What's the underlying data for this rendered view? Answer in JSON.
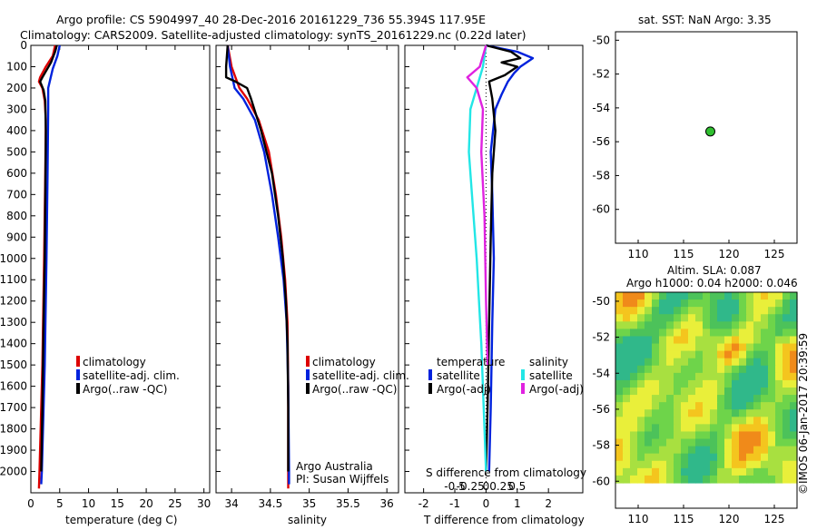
{
  "header": {
    "title_line1": "Argo profile: CS 5904997_40 28-Dec-2016 20161229_736 55.394S 117.95E",
    "title_line2": "Climatology: CARS2009. Satellite-adjusted climatology: synTS_20161229.nc (0.22d later)"
  },
  "colors": {
    "climatology": "#dd0000",
    "satellite": "#0022dd",
    "argo": "#000000",
    "sat_salinity": "#22e6e6",
    "argo_salinity": "#e022e0",
    "marker": "#2fbf2f"
  },
  "chart_data": [
    {
      "type": "line",
      "name": "temperature-profile",
      "xlabel": "temperature (deg C)",
      "ylabel": "",
      "xlim": [
        0,
        31
      ],
      "ylim": [
        2100,
        0
      ],
      "x_ticks": [
        "0",
        "5",
        "10",
        "15",
        "20",
        "25",
        "30"
      ],
      "y_ticks": [
        "0",
        "100",
        "200",
        "300",
        "400",
        "500",
        "600",
        "700",
        "800",
        "900",
        "1000",
        "1100",
        "1200",
        "1300",
        "1400",
        "1500",
        "1600",
        "1700",
        "1800",
        "1900",
        "2000"
      ],
      "legend": [
        "climatology",
        "satellite-adj. clim.",
        "Argo(..raw -QC)"
      ],
      "series": [
        {
          "name": "climatology",
          "color": "#dd0000",
          "points": [
            [
              4.2,
              0
            ],
            [
              3.8,
              50
            ],
            [
              2.6,
              100
            ],
            [
              1.6,
              150
            ],
            [
              1.4,
              170
            ],
            [
              2.0,
              200
            ],
            [
              2.4,
              260
            ],
            [
              2.6,
              350
            ],
            [
              2.5,
              600
            ],
            [
              2.3,
              1000
            ],
            [
              2.0,
              1500
            ],
            [
              1.5,
              2000
            ],
            [
              1.4,
              2080
            ]
          ]
        },
        {
          "name": "satellite-adj. clim.",
          "color": "#0022dd",
          "points": [
            [
              5.0,
              0
            ],
            [
              4.6,
              50
            ],
            [
              3.8,
              110
            ],
            [
              3.0,
              200
            ],
            [
              3.0,
              300
            ],
            [
              2.9,
              600
            ],
            [
              2.7,
              1000
            ],
            [
              2.4,
              1500
            ],
            [
              1.9,
              2000
            ],
            [
              1.8,
              2060
            ]
          ]
        },
        {
          "name": "Argo(..raw -QC)",
          "color": "#000000",
          "points": [
            [
              4.5,
              0
            ],
            [
              4.2,
              30
            ],
            [
              3.5,
              80
            ],
            [
              2.0,
              150
            ],
            [
              1.6,
              170
            ],
            [
              2.2,
              210
            ],
            [
              2.5,
              260
            ],
            [
              2.6,
              400
            ],
            [
              2.5,
              700
            ],
            [
              2.4,
              1000
            ],
            [
              2.2,
              1300
            ],
            [
              2.0,
              1700
            ],
            [
              1.8,
              2000
            ]
          ]
        }
      ]
    },
    {
      "type": "line",
      "name": "salinity-profile",
      "xlabel": "salinity",
      "xlim": [
        33.8,
        36.15
      ],
      "ylim": [
        2100,
        0
      ],
      "x_ticks": [
        "34",
        "34.5",
        "35",
        "35.5",
        "36"
      ],
      "legend": [
        "climatology",
        "satellite-adj. clim.",
        "Argo(..raw -QC)"
      ],
      "annotation": [
        "Argo Australia",
        "PI: Susan Wijffels"
      ],
      "series": [
        {
          "name": "climatology",
          "color": "#dd0000",
          "points": [
            [
              33.95,
              0
            ],
            [
              34.0,
              100
            ],
            [
              34.1,
              200
            ],
            [
              34.2,
              250
            ],
            [
              34.35,
              350
            ],
            [
              34.48,
              500
            ],
            [
              34.57,
              700
            ],
            [
              34.64,
              900
            ],
            [
              34.69,
              1100
            ],
            [
              34.72,
              1300
            ],
            [
              34.73,
              1600
            ],
            [
              34.73,
              2000
            ],
            [
              34.73,
              2080
            ]
          ]
        },
        {
          "name": "satellite-adj. clim.",
          "color": "#0022dd",
          "points": [
            [
              33.95,
              0
            ],
            [
              33.98,
              100
            ],
            [
              34.04,
              200
            ],
            [
              34.15,
              250
            ],
            [
              34.3,
              350
            ],
            [
              34.42,
              500
            ],
            [
              34.52,
              700
            ],
            [
              34.6,
              900
            ],
            [
              34.67,
              1100
            ],
            [
              34.71,
              1300
            ],
            [
              34.73,
              1600
            ],
            [
              34.74,
              2000
            ],
            [
              34.74,
              2060
            ]
          ]
        },
        {
          "name": "Argo(..raw -QC)",
          "color": "#000000",
          "points": [
            [
              33.95,
              0
            ],
            [
              33.93,
              100
            ],
            [
              33.93,
              150
            ],
            [
              34.05,
              170
            ],
            [
              34.2,
              200
            ],
            [
              34.25,
              250
            ],
            [
              34.38,
              400
            ],
            [
              34.52,
              600
            ],
            [
              34.6,
              800
            ],
            [
              34.66,
              1000
            ],
            [
              34.7,
              1200
            ],
            [
              34.72,
              1400
            ],
            [
              34.73,
              1700
            ],
            [
              34.73,
              2000
            ]
          ]
        }
      ]
    },
    {
      "type": "line",
      "name": "difference-profile",
      "xlabel": "T difference from climatology",
      "xlabel_top": "S difference from climatology",
      "xlim": [
        -2.6,
        3.1
      ],
      "ylim": [
        2100,
        0
      ],
      "x_ticks": [
        "-2",
        "-1",
        "0",
        "1",
        "2"
      ],
      "s_ticks": [
        "-0.5",
        "-0.25",
        "0",
        "0.25",
        "0.5"
      ],
      "legend_temperature": {
        "title": "temperature",
        "items": [
          "satellite",
          "Argo(-adj)"
        ]
      },
      "legend_salinity": {
        "title": "salinity",
        "items": [
          "satellite",
          "Argo(-adj)"
        ]
      },
      "series": [
        {
          "name": "T satellite",
          "color": "#0022dd",
          "points": [
            [
              0.0,
              0
            ],
            [
              1.0,
              30
            ],
            [
              1.5,
              60
            ],
            [
              1.1,
              100
            ],
            [
              0.9,
              130
            ],
            [
              0.7,
              170
            ],
            [
              0.5,
              230
            ],
            [
              0.3,
              300
            ],
            [
              0.15,
              500
            ],
            [
              0.2,
              700
            ],
            [
              0.25,
              1000
            ],
            [
              0.2,
              1300
            ],
            [
              0.15,
              1700
            ],
            [
              0.1,
              2000
            ]
          ]
        },
        {
          "name": "T Argo(-adj)",
          "color": "#000000",
          "points": [
            [
              0.0,
              0
            ],
            [
              0.8,
              30
            ],
            [
              1.1,
              60
            ],
            [
              0.5,
              80
            ],
            [
              1.0,
              100
            ],
            [
              0.6,
              140
            ],
            [
              0.1,
              170
            ],
            [
              0.2,
              250
            ],
            [
              0.3,
              400
            ],
            [
              0.2,
              600
            ],
            [
              0.15,
              900
            ],
            [
              0.1,
              1300
            ],
            [
              0.05,
              1700
            ],
            [
              0.0,
              2000
            ]
          ]
        },
        {
          "name": "S satellite",
          "color": "#22e6e6",
          "points": [
            [
              0.0,
              0
            ],
            [
              -0.1,
              100
            ],
            [
              -0.3,
              200
            ],
            [
              -0.5,
              300
            ],
            [
              -0.55,
              500
            ],
            [
              -0.45,
              700
            ],
            [
              -0.3,
              1000
            ],
            [
              -0.15,
              1400
            ],
            [
              -0.05,
              1800
            ],
            [
              0.0,
              2000
            ]
          ]
        },
        {
          "name": "S Argo(-adj)",
          "color": "#e022e0",
          "points": [
            [
              0.0,
              0
            ],
            [
              -0.2,
              100
            ],
            [
              -0.6,
              150
            ],
            [
              -0.3,
              200
            ],
            [
              -0.1,
              300
            ],
            [
              -0.15,
              500
            ],
            [
              -0.05,
              800
            ],
            [
              0.0,
              1200
            ],
            [
              0.05,
              1500
            ]
          ]
        }
      ]
    },
    {
      "type": "scatter",
      "name": "sst-map",
      "title": "sat. SST: NaN Argo: 3.35",
      "xlim": [
        107.5,
        127.5
      ],
      "ylim": [
        -62,
        -49.5
      ],
      "x_ticks": [
        "110",
        "115",
        "120",
        "125"
      ],
      "y_ticks": [
        "-50",
        "-52",
        "-54",
        "-56",
        "-58",
        "-60"
      ],
      "points": [
        {
          "lon": 117.95,
          "lat": -55.394
        }
      ]
    },
    {
      "type": "heatmap",
      "name": "sla-map",
      "title_line1": "Altim. SLA: 0.087",
      "title_line2": "Argo h1000: 0.04 h2000: 0.046",
      "xlim": [
        107.5,
        127.5
      ],
      "ylim": [
        -61.5,
        -49.5
      ],
      "x_ticks": [
        "110",
        "115",
        "120",
        "125"
      ],
      "y_ticks": [
        "-50",
        "-52",
        "-54",
        "-56",
        "-58",
        "-60"
      ],
      "side_label": "©IMOS 06-Jan-2017 20:39:59"
    }
  ]
}
